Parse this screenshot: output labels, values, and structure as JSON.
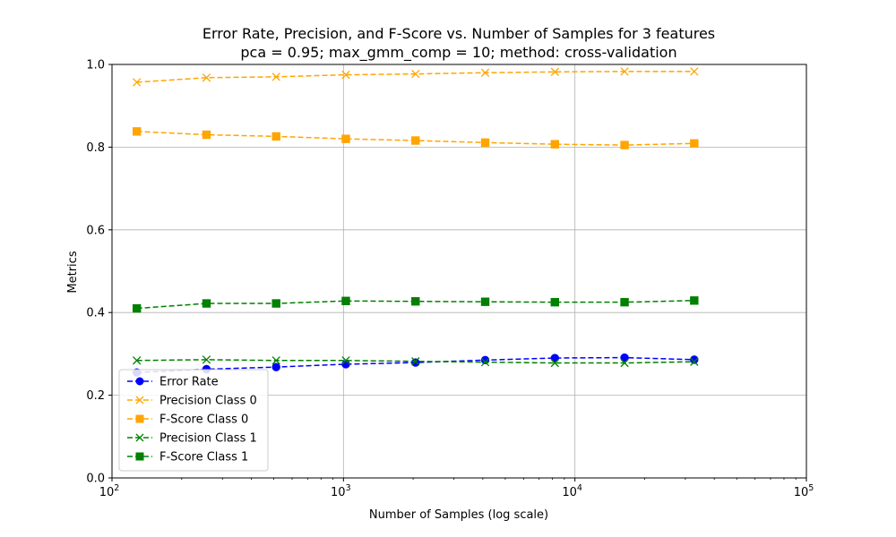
{
  "chart_data": {
    "type": "line",
    "title": "Error Rate, Precision, and F-Score vs. Number of Samples for 3 features",
    "subtitle": "pca = 0.95; max_gmm_comp = 10; method: cross-validation",
    "xlabel": "Number of Samples (log scale)",
    "ylabel": "Metrics",
    "xscale": "log",
    "xlim": [
      100,
      100000
    ],
    "ylim": [
      0,
      1.0
    ],
    "grid": true,
    "legend_position": "lower-left",
    "x_ticks": [
      {
        "value": 100,
        "base": "10",
        "exp": "2"
      },
      {
        "value": 1000,
        "base": "10",
        "exp": "3"
      },
      {
        "value": 10000,
        "base": "10",
        "exp": "4"
      },
      {
        "value": 100000,
        "base": "10",
        "exp": "5"
      }
    ],
    "y_ticks": [
      {
        "value": 0.0,
        "label": "0.0"
      },
      {
        "value": 0.2,
        "label": "0.2"
      },
      {
        "value": 0.4,
        "label": "0.4"
      },
      {
        "value": 0.6,
        "label": "0.6"
      },
      {
        "value": 0.8,
        "label": "0.8"
      },
      {
        "value": 1.0,
        "label": "1.0"
      }
    ],
    "x": [
      128,
      256,
      512,
      1024,
      2048,
      4096,
      8192,
      16384,
      32768
    ],
    "series": [
      {
        "name": "Error Rate",
        "color": "#0000ff",
        "marker": "circle",
        "values": [
          0.255,
          0.263,
          0.268,
          0.275,
          0.279,
          0.285,
          0.29,
          0.291,
          0.286
        ]
      },
      {
        "name": "Precision Class 0",
        "color": "#ffa500",
        "marker": "x",
        "values": [
          0.957,
          0.968,
          0.97,
          0.975,
          0.977,
          0.98,
          0.982,
          0.983,
          0.983
        ]
      },
      {
        "name": "F-Score Class 0",
        "color": "#ffa500",
        "marker": "square",
        "values": [
          0.838,
          0.83,
          0.826,
          0.82,
          0.816,
          0.811,
          0.807,
          0.805,
          0.809
        ]
      },
      {
        "name": "Precision Class 1",
        "color": "#008000",
        "marker": "x",
        "values": [
          0.284,
          0.286,
          0.284,
          0.284,
          0.282,
          0.28,
          0.278,
          0.278,
          0.281
        ]
      },
      {
        "name": "F-Score Class 1",
        "color": "#008000",
        "marker": "square",
        "values": [
          0.41,
          0.422,
          0.422,
          0.428,
          0.427,
          0.426,
          0.425,
          0.425,
          0.429
        ]
      }
    ]
  }
}
